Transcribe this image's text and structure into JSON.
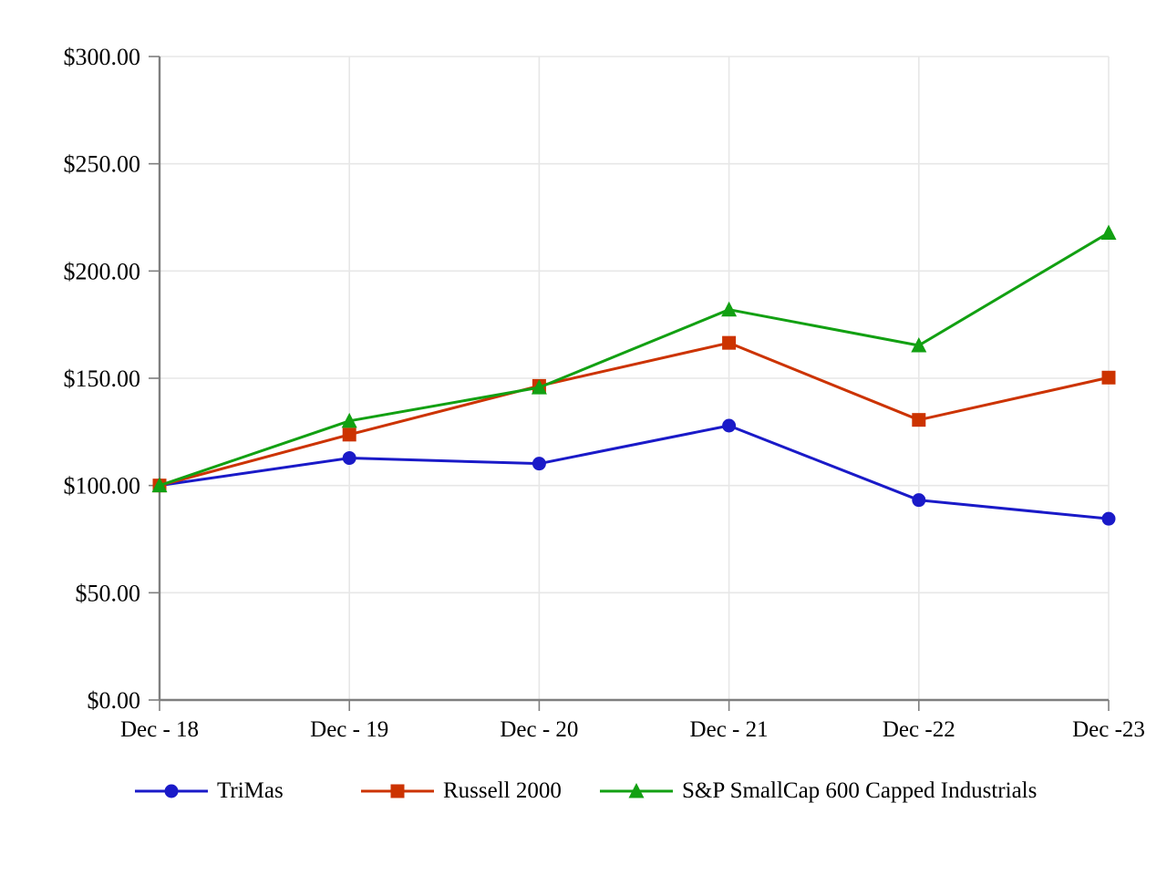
{
  "chart_data": {
    "type": "line",
    "title": "",
    "categories": [
      "Dec - 18",
      "Dec - 19",
      "Dec - 20",
      "Dec - 21",
      "Dec -22",
      "Dec -23"
    ],
    "y_axis": {
      "min": 0,
      "max": 300,
      "tick_step": 50,
      "tick_labels": [
        "$0.00",
        "$50.00",
        "$100.00",
        "$150.00",
        "$200.00",
        "$250.00",
        "$300.00"
      ]
    },
    "series": [
      {
        "name": "TriMas",
        "marker": "circle",
        "color": "#1a1ac8",
        "values": [
          100.0,
          112.8,
          110.2,
          127.9,
          93.2,
          84.5
        ]
      },
      {
        "name": "Russell 2000",
        "marker": "square",
        "color": "#cc3300",
        "values": [
          100.0,
          123.72,
          146.44,
          166.5,
          130.59,
          150.31
        ]
      },
      {
        "name": "S&P SmallCap 600 Capped Industrials",
        "marker": "triangle",
        "color": "#12a012",
        "values": [
          100.0,
          130.1,
          145.7,
          182.0,
          165.3,
          217.8
        ]
      }
    ],
    "grid": true,
    "legend_position": "bottom"
  },
  "colors": {
    "axis": "#7f7f7f",
    "gridline": "#e7e7e7",
    "text": "#000000",
    "background": "#ffffff"
  }
}
